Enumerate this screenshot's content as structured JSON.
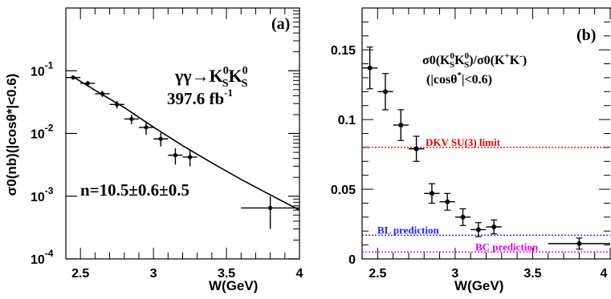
{
  "chart_data": [
    {
      "type": "scatter",
      "panel_label": "(a)",
      "xlabel": "W(GeV)",
      "ylabel": "σ0(nb)(|cosθ*|<0.6)",
      "xlim": [
        2.4,
        4.0
      ],
      "ylim": [
        0.0001,
        1
      ],
      "yscale": "log",
      "x_ticks": [
        "2.5",
        "3",
        "3.5",
        "4"
      ],
      "y_ticks": [
        {
          "value": 0.1,
          "base": "10",
          "exp": "-1"
        },
        {
          "value": 0.01,
          "base": "10",
          "exp": "-2"
        },
        {
          "value": 0.001,
          "base": "10",
          "exp": "-3"
        },
        {
          "value": 0.0001,
          "base": "10",
          "exp": "-4"
        }
      ],
      "annotations": {
        "process": "γγ→K",
        "process_sub": "S",
        "process_sup": "0",
        "luminosity": "397.6 fb",
        "luminosity_sup": "-1",
        "fit_result": "n=10.5±0.6±0.5"
      },
      "series": [
        {
          "type": "points",
          "x": [
            2.45,
            2.55,
            2.65,
            2.75,
            2.85,
            2.95,
            3.05,
            3.15,
            3.25,
            3.8
          ],
          "y": [
            0.078,
            0.063,
            0.043,
            0.029,
            0.017,
            0.0125,
            0.0082,
            0.0045,
            0.0042,
            0.00065
          ],
          "xerr": [
            0.05,
            0.05,
            0.05,
            0.05,
            0.05,
            0.05,
            0.05,
            0.05,
            0.05,
            0.2
          ],
          "yerr_lo": [
            0.006,
            0.006,
            0.005,
            0.004,
            0.003,
            0.003,
            0.002,
            0.0013,
            0.0012,
            0.00035
          ],
          "yerr_hi": [
            0.006,
            0.006,
            0.005,
            0.004,
            0.003,
            0.003,
            0.002,
            0.0013,
            0.0012,
            0.00035
          ]
        },
        {
          "type": "fit_curve",
          "x": [
            2.45,
            2.6,
            2.8,
            3.0,
            3.2,
            3.4,
            3.6,
            3.8,
            4.0
          ],
          "y": [
            0.08,
            0.0488,
            0.0259,
            0.0126,
            0.0064,
            0.0034,
            0.00185,
            0.00105,
            0.0006
          ]
        }
      ]
    },
    {
      "type": "scatter",
      "panel_label": "(b)",
      "xlabel": "W(GeV)",
      "xlim": [
        2.4,
        4.0
      ],
      "ylim": [
        0,
        0.18
      ],
      "x_ticks": [
        "2.5",
        "3",
        "3.5",
        "4"
      ],
      "y_ticks": [
        "0",
        "0.05",
        "0.1",
        "0.15"
      ],
      "annotations": {
        "ratio_num": "σ0(K",
        "ratio_den": ")/σ0(K",
        "ratio_pm": "+",
        "ratio_mp": "-",
        "ratio_close": ")",
        "cut": "(|cosθ",
        "cut_sup": "*",
        "cut_end": "|<0.6)"
      },
      "series": [
        {
          "type": "points",
          "x": [
            2.45,
            2.55,
            2.65,
            2.75,
            2.85,
            2.95,
            3.05,
            3.15,
            3.25,
            3.8
          ],
          "y": [
            0.137,
            0.12,
            0.096,
            0.079,
            0.047,
            0.041,
            0.03,
            0.021,
            0.023,
            0.011
          ],
          "xerr": [
            0.05,
            0.05,
            0.05,
            0.05,
            0.05,
            0.05,
            0.05,
            0.05,
            0.05,
            0.2
          ],
          "yerr": [
            0.015,
            0.013,
            0.011,
            0.009,
            0.007,
            0.006,
            0.006,
            0.005,
            0.005,
            0.004
          ]
        }
      ],
      "reference_lines": [
        {
          "label": "DKV SU(3) limit",
          "y": 0.08,
          "color": "#e00000"
        },
        {
          "label": "BL prediction",
          "y": 0.017,
          "color": "#2020ff"
        },
        {
          "label": "BC prediction",
          "y": 0.005,
          "color": "#e000e0"
        }
      ]
    }
  ]
}
